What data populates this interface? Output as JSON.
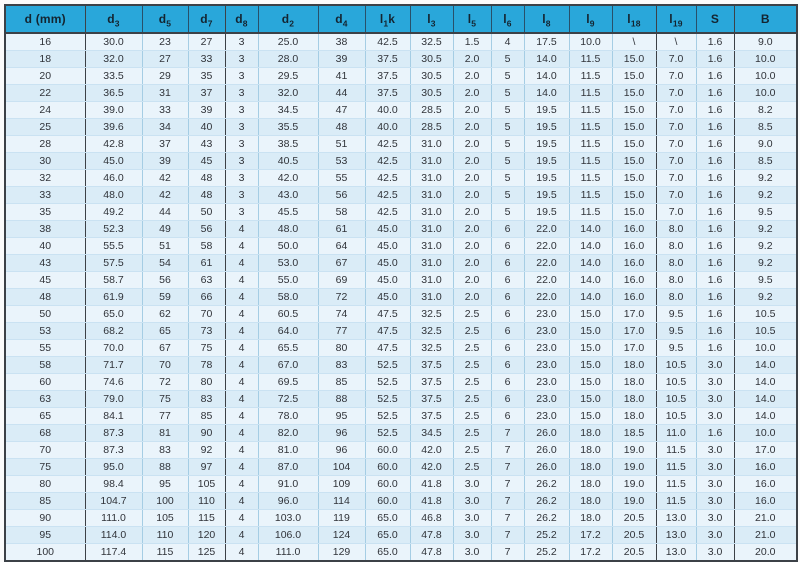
{
  "table": {
    "columns": [
      {
        "base": "d (mm)",
        "sub": "",
        "suffix": ""
      },
      {
        "base": "d",
        "sub": "3",
        "suffix": ""
      },
      {
        "base": "d",
        "sub": "5",
        "suffix": ""
      },
      {
        "base": "d",
        "sub": "7",
        "suffix": ""
      },
      {
        "base": "d",
        "sub": "8",
        "suffix": ""
      },
      {
        "base": "d",
        "sub": "2",
        "suffix": ""
      },
      {
        "base": "d",
        "sub": "4",
        "suffix": ""
      },
      {
        "base": "l",
        "sub": "1",
        "suffix": "k"
      },
      {
        "base": "l",
        "sub": "3",
        "suffix": ""
      },
      {
        "base": "l",
        "sub": "5",
        "suffix": ""
      },
      {
        "base": "l",
        "sub": "6",
        "suffix": ""
      },
      {
        "base": "l",
        "sub": "8",
        "suffix": ""
      },
      {
        "base": "l",
        "sub": "9",
        "suffix": ""
      },
      {
        "base": "l",
        "sub": "18",
        "suffix": ""
      },
      {
        "base": "l",
        "sub": "19",
        "suffix": ""
      },
      {
        "base": "S",
        "sub": "",
        "suffix": ""
      },
      {
        "base": "B",
        "sub": "",
        "suffix": ""
      }
    ],
    "dark_after": [
      0,
      3,
      13,
      15
    ],
    "rows": [
      [
        "16",
        "30.0",
        "23",
        "27",
        "3",
        "25.0",
        "38",
        "42.5",
        "32.5",
        "1.5",
        "4",
        "17.5",
        "10.0",
        "\\",
        "\\",
        "1.6",
        "9.0"
      ],
      [
        "18",
        "32.0",
        "27",
        "33",
        "3",
        "28.0",
        "39",
        "37.5",
        "30.5",
        "2.0",
        "5",
        "14.0",
        "11.5",
        "15.0",
        "7.0",
        "1.6",
        "10.0"
      ],
      [
        "20",
        "33.5",
        "29",
        "35",
        "3",
        "29.5",
        "41",
        "37.5",
        "30.5",
        "2.0",
        "5",
        "14.0",
        "11.5",
        "15.0",
        "7.0",
        "1.6",
        "10.0"
      ],
      [
        "22",
        "36.5",
        "31",
        "37",
        "3",
        "32.0",
        "44",
        "37.5",
        "30.5",
        "2.0",
        "5",
        "14.0",
        "11.5",
        "15.0",
        "7.0",
        "1.6",
        "10.0"
      ],
      [
        "24",
        "39.0",
        "33",
        "39",
        "3",
        "34.5",
        "47",
        "40.0",
        "28.5",
        "2.0",
        "5",
        "19.5",
        "11.5",
        "15.0",
        "7.0",
        "1.6",
        "8.2"
      ],
      [
        "25",
        "39.6",
        "34",
        "40",
        "3",
        "35.5",
        "48",
        "40.0",
        "28.5",
        "2.0",
        "5",
        "19.5",
        "11.5",
        "15.0",
        "7.0",
        "1.6",
        "8.5"
      ],
      [
        "28",
        "42.8",
        "37",
        "43",
        "3",
        "38.5",
        "51",
        "42.5",
        "31.0",
        "2.0",
        "5",
        "19.5",
        "11.5",
        "15.0",
        "7.0",
        "1.6",
        "9.0"
      ],
      [
        "30",
        "45.0",
        "39",
        "45",
        "3",
        "40.5",
        "53",
        "42.5",
        "31.0",
        "2.0",
        "5",
        "19.5",
        "11.5",
        "15.0",
        "7.0",
        "1.6",
        "8.5"
      ],
      [
        "32",
        "46.0",
        "42",
        "48",
        "3",
        "42.0",
        "55",
        "42.5",
        "31.0",
        "2.0",
        "5",
        "19.5",
        "11.5",
        "15.0",
        "7.0",
        "1.6",
        "9.2"
      ],
      [
        "33",
        "48.0",
        "42",
        "48",
        "3",
        "43.0",
        "56",
        "42.5",
        "31.0",
        "2.0",
        "5",
        "19.5",
        "11.5",
        "15.0",
        "7.0",
        "1.6",
        "9.2"
      ],
      [
        "35",
        "49.2",
        "44",
        "50",
        "3",
        "45.5",
        "58",
        "42.5",
        "31.0",
        "2.0",
        "5",
        "19.5",
        "11.5",
        "15.0",
        "7.0",
        "1.6",
        "9.5"
      ],
      [
        "38",
        "52.3",
        "49",
        "56",
        "4",
        "48.0",
        "61",
        "45.0",
        "31.0",
        "2.0",
        "6",
        "22.0",
        "14.0",
        "16.0",
        "8.0",
        "1.6",
        "9.2"
      ],
      [
        "40",
        "55.5",
        "51",
        "58",
        "4",
        "50.0",
        "64",
        "45.0",
        "31.0",
        "2.0",
        "6",
        "22.0",
        "14.0",
        "16.0",
        "8.0",
        "1.6",
        "9.2"
      ],
      [
        "43",
        "57.5",
        "54",
        "61",
        "4",
        "53.0",
        "67",
        "45.0",
        "31.0",
        "2.0",
        "6",
        "22.0",
        "14.0",
        "16.0",
        "8.0",
        "1.6",
        "9.2"
      ],
      [
        "45",
        "58.7",
        "56",
        "63",
        "4",
        "55.0",
        "69",
        "45.0",
        "31.0",
        "2.0",
        "6",
        "22.0",
        "14.0",
        "16.0",
        "8.0",
        "1.6",
        "9.5"
      ],
      [
        "48",
        "61.9",
        "59",
        "66",
        "4",
        "58.0",
        "72",
        "45.0",
        "31.0",
        "2.0",
        "6",
        "22.0",
        "14.0",
        "16.0",
        "8.0",
        "1.6",
        "9.2"
      ],
      [
        "50",
        "65.0",
        "62",
        "70",
        "4",
        "60.5",
        "74",
        "47.5",
        "32.5",
        "2.5",
        "6",
        "23.0",
        "15.0",
        "17.0",
        "9.5",
        "1.6",
        "10.5"
      ],
      [
        "53",
        "68.2",
        "65",
        "73",
        "4",
        "64.0",
        "77",
        "47.5",
        "32.5",
        "2.5",
        "6",
        "23.0",
        "15.0",
        "17.0",
        "9.5",
        "1.6",
        "10.5"
      ],
      [
        "55",
        "70.0",
        "67",
        "75",
        "4",
        "65.5",
        "80",
        "47.5",
        "32.5",
        "2.5",
        "6",
        "23.0",
        "15.0",
        "17.0",
        "9.5",
        "1.6",
        "10.0"
      ],
      [
        "58",
        "71.7",
        "70",
        "78",
        "4",
        "67.0",
        "83",
        "52.5",
        "37.5",
        "2.5",
        "6",
        "23.0",
        "15.0",
        "18.0",
        "10.5",
        "3.0",
        "14.0"
      ],
      [
        "60",
        "74.6",
        "72",
        "80",
        "4",
        "69.5",
        "85",
        "52.5",
        "37.5",
        "2.5",
        "6",
        "23.0",
        "15.0",
        "18.0",
        "10.5",
        "3.0",
        "14.0"
      ],
      [
        "63",
        "79.0",
        "75",
        "83",
        "4",
        "72.5",
        "88",
        "52.5",
        "37.5",
        "2.5",
        "6",
        "23.0",
        "15.0",
        "18.0",
        "10.5",
        "3.0",
        "14.0"
      ],
      [
        "65",
        "84.1",
        "77",
        "85",
        "4",
        "78.0",
        "95",
        "52.5",
        "37.5",
        "2.5",
        "6",
        "23.0",
        "15.0",
        "18.0",
        "10.5",
        "3.0",
        "14.0"
      ],
      [
        "68",
        "87.3",
        "81",
        "90",
        "4",
        "82.0",
        "96",
        "52.5",
        "34.5",
        "2.5",
        "7",
        "26.0",
        "18.0",
        "18.5",
        "11.0",
        "1.6",
        "10.0"
      ],
      [
        "70",
        "87.3",
        "83",
        "92",
        "4",
        "81.0",
        "96",
        "60.0",
        "42.0",
        "2.5",
        "7",
        "26.0",
        "18.0",
        "19.0",
        "11.5",
        "3.0",
        "17.0"
      ],
      [
        "75",
        "95.0",
        "88",
        "97",
        "4",
        "87.0",
        "104",
        "60.0",
        "42.0",
        "2.5",
        "7",
        "26.0",
        "18.0",
        "19.0",
        "11.5",
        "3.0",
        "16.0"
      ],
      [
        "80",
        "98.4",
        "95",
        "105",
        "4",
        "91.0",
        "109",
        "60.0",
        "41.8",
        "3.0",
        "7",
        "26.2",
        "18.0",
        "19.0",
        "11.5",
        "3.0",
        "16.0"
      ],
      [
        "85",
        "104.7",
        "100",
        "110",
        "4",
        "96.0",
        "114",
        "60.0",
        "41.8",
        "3.0",
        "7",
        "26.2",
        "18.0",
        "19.0",
        "11.5",
        "3.0",
        "16.0"
      ],
      [
        "90",
        "111.0",
        "105",
        "115",
        "4",
        "103.0",
        "119",
        "65.0",
        "46.8",
        "3.0",
        "7",
        "26.2",
        "18.0",
        "20.5",
        "13.0",
        "3.0",
        "21.0"
      ],
      [
        "95",
        "114.0",
        "110",
        "120",
        "4",
        "106.0",
        "124",
        "65.0",
        "47.8",
        "3.0",
        "7",
        "25.2",
        "17.2",
        "20.5",
        "13.0",
        "3.0",
        "21.0"
      ],
      [
        "100",
        "117.4",
        "115",
        "125",
        "4",
        "111.0",
        "129",
        "65.0",
        "47.8",
        "3.0",
        "7",
        "25.2",
        "17.2",
        "20.5",
        "13.0",
        "3.0",
        "20.0"
      ]
    ]
  },
  "colors": {
    "header_bg": "#29a7da",
    "header_text": "#142430",
    "row_light": "#eaf4fb",
    "row_dark": "#daecf7",
    "grid_light": "#a5cde4",
    "grid_row_line": "#cae2f2",
    "border_dark": "#3c4147",
    "body_text": "#303339"
  }
}
